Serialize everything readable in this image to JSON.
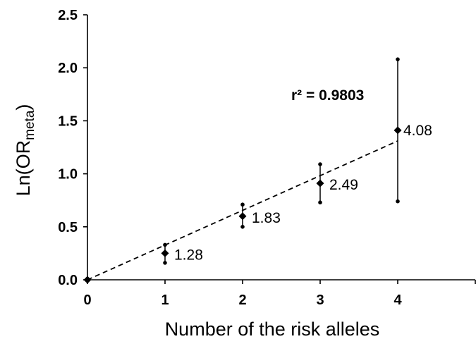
{
  "chart_data": {
    "type": "scatter",
    "xlabel": "Number of the risk alleles",
    "ylabel_main": "Ln(OR",
    "ylabel_sub": "meta",
    "ylabel_close": ")",
    "xlim": [
      0,
      5
    ],
    "ylim": [
      0,
      2.5
    ],
    "x_ticks": [
      "0",
      "1",
      "2",
      "3",
      "4"
    ],
    "y_ticks": [
      "0.0",
      "0.5",
      "1.0",
      "1.5",
      "2.0",
      "2.5"
    ],
    "grid": false,
    "points": [
      {
        "x": 0,
        "y": 0.0,
        "lower": null,
        "upper": null,
        "label": ""
      },
      {
        "x": 1,
        "y": 0.25,
        "lower": 0.16,
        "upper": 0.33,
        "label": "1.28"
      },
      {
        "x": 2,
        "y": 0.6,
        "lower": 0.5,
        "upper": 0.71,
        "label": "1.83"
      },
      {
        "x": 3,
        "y": 0.91,
        "lower": 0.73,
        "upper": 1.09,
        "label": "2.49"
      },
      {
        "x": 4,
        "y": 1.41,
        "lower": 0.74,
        "upper": 2.08,
        "label": "4.08"
      }
    ],
    "trendline": {
      "style": "dashed",
      "from": {
        "x": 0,
        "y": 0
      },
      "to": {
        "x": 4,
        "y": 1.31
      }
    },
    "annotation": "r² = 0.9803"
  }
}
